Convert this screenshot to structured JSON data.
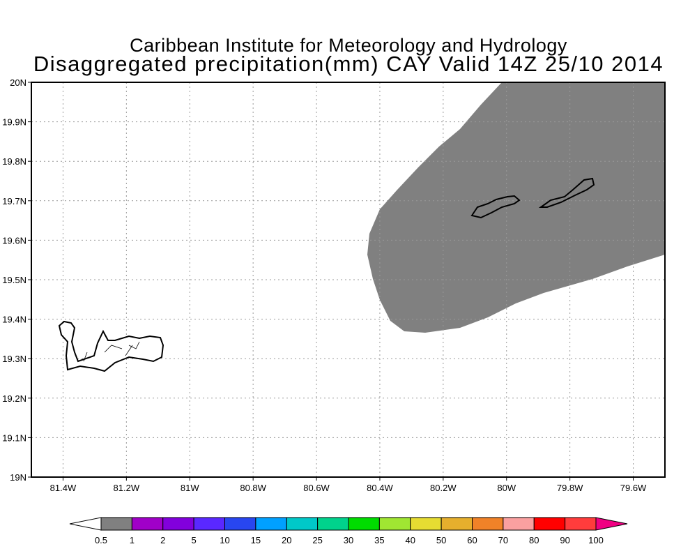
{
  "title_line1": "Caribbean Institute for Meteorology and Hydrology",
  "title_line2": "Disaggregated precipitation(mm) CAY Valid 14Z 25/10 2014",
  "x_ticks": [
    {
      "lon": -81.4,
      "label": "81.4W"
    },
    {
      "lon": -81.2,
      "label": "81.2W"
    },
    {
      "lon": -81.0,
      "label": "81W"
    },
    {
      "lon": -80.8,
      "label": "80.8W"
    },
    {
      "lon": -80.6,
      "label": "80.6W"
    },
    {
      "lon": -80.4,
      "label": "80.4W"
    },
    {
      "lon": -80.2,
      "label": "80.2W"
    },
    {
      "lon": -80.0,
      "label": "80W"
    },
    {
      "lon": -79.8,
      "label": "79.8W"
    },
    {
      "lon": -79.6,
      "label": "79.6W"
    }
  ],
  "y_ticks": [
    {
      "lat": 20.0,
      "label": "20N"
    },
    {
      "lat": 19.9,
      "label": "19.9N"
    },
    {
      "lat": 19.8,
      "label": "19.8N"
    },
    {
      "lat": 19.7,
      "label": "19.7N"
    },
    {
      "lat": 19.6,
      "label": "19.6N"
    },
    {
      "lat": 19.5,
      "label": "19.5N"
    },
    {
      "lat": 19.4,
      "label": "19.4N"
    },
    {
      "lat": 19.3,
      "label": "19.3N"
    },
    {
      "lat": 19.2,
      "label": "19.2N"
    },
    {
      "lat": 19.1,
      "label": "19.1N"
    },
    {
      "lat": 19.0,
      "label": "19N"
    }
  ],
  "extent": {
    "lon": [
      -81.5,
      -79.5
    ],
    "lat": [
      19.0,
      20.0
    ]
  },
  "colorbar": {
    "labels": [
      "0.5",
      "1",
      "2",
      "5",
      "10",
      "15",
      "20",
      "25",
      "30",
      "35",
      "40",
      "50",
      "60",
      "70",
      "80",
      "90",
      "100"
    ],
    "colors": [
      "#808080",
      "#a000c8",
      "#8200dc",
      "#5a28ff",
      "#2846f0",
      "#00a0ff",
      "#00c8c8",
      "#00d28c",
      "#00dc00",
      "#a0e632",
      "#e6dc32",
      "#e6af2d",
      "#f08228",
      "#faa0a0",
      "#ff0000",
      "#ff3c3c"
    ],
    "under_color": "#ffffff",
    "over_color": "#f00082"
  },
  "precip_field_color": "#808080"
}
